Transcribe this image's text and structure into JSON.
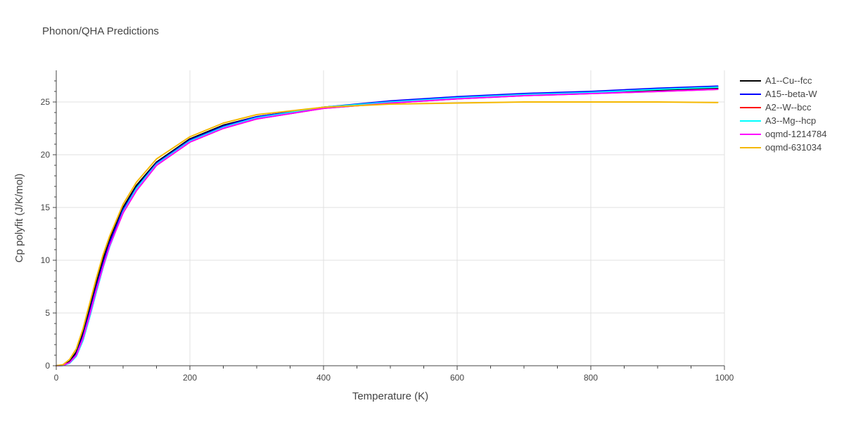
{
  "chart_data": {
    "type": "line",
    "title": "Phonon/QHA Predictions",
    "xlabel": "Temperature (K)",
    "ylabel": "Cp polyfit (J/K/mol)",
    "xlim": [
      0,
      1000
    ],
    "ylim": [
      0,
      28
    ],
    "xticks": [
      0,
      200,
      400,
      600,
      800,
      1000
    ],
    "yticks": [
      0,
      5,
      10,
      15,
      20,
      25
    ],
    "grid": true,
    "legend_position": "right",
    "series": [
      {
        "name": "A1--Cu--fcc",
        "color": "#000000",
        "x": [
          0,
          10,
          20,
          30,
          40,
          50,
          60,
          70,
          80,
          100,
          120,
          150,
          200,
          250,
          300,
          400,
          500,
          600,
          700,
          800,
          900,
          990
        ],
        "y": [
          0,
          0.05,
          0.4,
          1.3,
          3.1,
          5.5,
          7.9,
          10.1,
          12.0,
          15.0,
          17.1,
          19.3,
          21.5,
          22.8,
          23.6,
          24.5,
          25.0,
          25.4,
          25.7,
          25.9,
          26.1,
          26.3
        ]
      },
      {
        "name": "A15--beta-W",
        "color": "#0000ff",
        "x": [
          0,
          10,
          20,
          30,
          40,
          50,
          60,
          70,
          80,
          100,
          120,
          150,
          200,
          250,
          300,
          400,
          500,
          600,
          700,
          800,
          900,
          990
        ],
        "y": [
          0,
          0.03,
          0.3,
          1.1,
          2.8,
          5.1,
          7.5,
          9.7,
          11.7,
          14.8,
          16.9,
          19.2,
          21.4,
          22.7,
          23.6,
          24.5,
          25.1,
          25.5,
          25.8,
          26.0,
          26.3,
          26.5
        ]
      },
      {
        "name": "A2--W--bcc",
        "color": "#ff0000",
        "x": [
          0,
          10,
          20,
          30,
          40,
          50,
          60,
          70,
          80,
          100,
          120,
          150,
          200,
          250,
          300,
          400,
          500,
          600,
          700,
          800,
          900,
          990
        ],
        "y": [
          0,
          0.03,
          0.3,
          1.0,
          2.6,
          4.8,
          7.2,
          9.4,
          11.4,
          14.5,
          16.6,
          19.0,
          21.2,
          22.5,
          23.4,
          24.4,
          24.9,
          25.3,
          25.6,
          25.8,
          26.0,
          26.2
        ]
      },
      {
        "name": "A3--Mg--hcp",
        "color": "#00ffff",
        "x": [
          0,
          10,
          20,
          30,
          40,
          50,
          60,
          70,
          80,
          100,
          120,
          150,
          200,
          250,
          300,
          400,
          500,
          600,
          700,
          800,
          900,
          990
        ],
        "y": [
          0,
          0.02,
          0.25,
          0.9,
          2.4,
          4.6,
          7.0,
          9.3,
          11.3,
          14.6,
          16.8,
          19.1,
          21.3,
          22.6,
          23.5,
          24.5,
          25.0,
          25.4,
          25.7,
          25.9,
          26.2,
          26.4
        ]
      },
      {
        "name": "oqmd-1214784",
        "color": "#ff00ff",
        "x": [
          0,
          10,
          20,
          30,
          40,
          50,
          60,
          70,
          80,
          100,
          120,
          150,
          200,
          250,
          300,
          400,
          500,
          600,
          700,
          800,
          900,
          990
        ],
        "y": [
          0,
          0.03,
          0.3,
          1.0,
          2.6,
          4.8,
          7.2,
          9.4,
          11.4,
          14.5,
          16.6,
          19.0,
          21.2,
          22.5,
          23.4,
          24.4,
          24.9,
          25.3,
          25.6,
          25.8,
          26.0,
          26.2
        ]
      },
      {
        "name": "oqmd-631034",
        "color": "#f5b800",
        "x": [
          0,
          10,
          20,
          30,
          40,
          50,
          60,
          70,
          80,
          100,
          120,
          150,
          200,
          250,
          300,
          400,
          500,
          600,
          700,
          800,
          900,
          990
        ],
        "y": [
          0,
          0.1,
          0.6,
          1.6,
          3.5,
          5.9,
          8.3,
          10.5,
          12.3,
          15.3,
          17.4,
          19.6,
          21.7,
          23.0,
          23.8,
          24.5,
          24.8,
          24.9,
          25.0,
          25.0,
          25.0,
          24.95
        ]
      }
    ]
  }
}
